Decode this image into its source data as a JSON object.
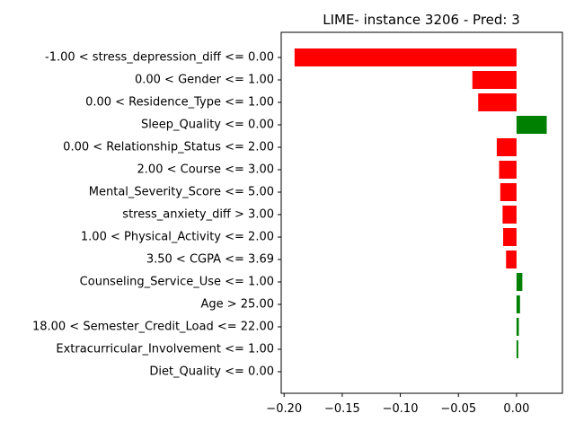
{
  "chart_data": {
    "type": "bar",
    "orientation": "horizontal",
    "title": "LIME- instance 3206 - Pred: 3",
    "xlabel": "",
    "ylabel": "",
    "xlim": [
      -0.2025,
      0.0395
    ],
    "x_ticks": [
      -0.2,
      -0.15,
      -0.1,
      -0.05,
      0.0
    ],
    "x_tick_labels": [
      "−0.20",
      "−0.15",
      "−0.10",
      "−0.05",
      "0.00"
    ],
    "grid": false,
    "colors": {
      "negative": "#ff0000",
      "positive": "#008000"
    },
    "categories": [
      "-1.00 < stress_depression_diff <= 0.00",
      "0.00 < Gender <= 1.00",
      "0.00 < Residence_Type <= 1.00",
      "Sleep_Quality <= 0.00",
      "0.00 < Relationship_Status <= 2.00",
      "2.00 < Course <= 3.00",
      "Mental_Severity_Score <= 5.00",
      "stress_anxiety_diff > 3.00",
      "1.00 < Physical_Activity <= 2.00",
      "3.50 < CGPA <= 3.69",
      "Counseling_Service_Use <= 1.00",
      "Age > 25.00",
      "18.00 < Semester_Credit_Load <= 22.00",
      "Extracurricular_Involvement <= 1.00",
      "Diet_Quality <= 0.00"
    ],
    "values": [
      -0.191,
      -0.038,
      -0.033,
      0.026,
      -0.017,
      -0.015,
      -0.014,
      -0.012,
      -0.0115,
      -0.009,
      0.005,
      0.003,
      0.002,
      0.0015,
      0.0
    ]
  }
}
